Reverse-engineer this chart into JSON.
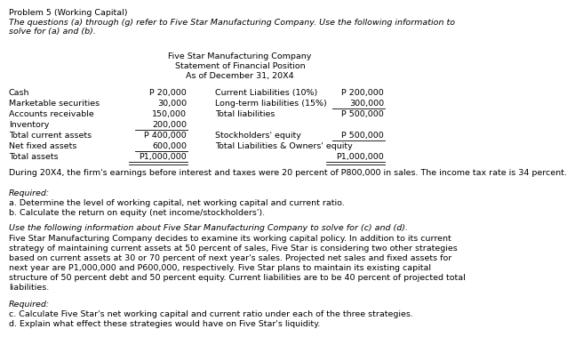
{
  "title_problem": "Problem 5 (Working Capital)",
  "intro_italic": "The questions (a) through (g) refer to Five Star Manufacturing Company. Use the following information to\nsolve for (a) and (b).",
  "company_header": [
    "Five Star Manufacturing Company",
    "Statement of Financial Position",
    "As of December 31, 20X4"
  ],
  "left_items": [
    {
      "label": "Cash",
      "value": "P 20,000",
      "ul": false,
      "dbl": false
    },
    {
      "label": "Marketable securities",
      "value": "30,000",
      "ul": false,
      "dbl": false
    },
    {
      "label": "Accounts receivable",
      "value": "150,000",
      "ul": false,
      "dbl": false
    },
    {
      "label": "Inventory",
      "value": "200,000",
      "ul": true,
      "dbl": false
    },
    {
      "label": "Total current assets",
      "value": "P 400,000",
      "ul": false,
      "dbl": false
    },
    {
      "label": "Net fixed assets",
      "value": "600,000",
      "ul": true,
      "dbl": false
    },
    {
      "label": "Total assets",
      "value": "P1,000,000",
      "ul": false,
      "dbl": true
    }
  ],
  "right_items": [
    {
      "label": "Current Liabilities (10%)",
      "value": "P 200,000",
      "ul": false,
      "dbl": false
    },
    {
      "label": "Long-term liabilities (15%)",
      "value": "300,000",
      "ul": true,
      "dbl": false
    },
    {
      "label": "Total liabilities",
      "value": "P 500,000",
      "ul": false,
      "dbl": false
    },
    {
      "label": "",
      "value": "",
      "ul": false,
      "dbl": false
    },
    {
      "label": "Stockholders' equity",
      "value": "P 500,000",
      "ul": true,
      "dbl": false
    },
    {
      "label": "Total Liabilities & Owners' equity",
      "value": "",
      "ul": false,
      "dbl": false
    },
    {
      "label": "",
      "value": "P1,000,000",
      "ul": false,
      "dbl": true
    }
  ],
  "para1": "During 20X4, the firm's earnings before interest and taxes were 20 percent of P800,000 in sales. The income tax rate is 34 percent.",
  "required1": "Required:",
  "item_a": "a. Determine the level of working capital, net working capital and current ratio.",
  "item_b": "b. Calculate the return on equity (net income/stockholders').",
  "italic2": "Use the following information about Five Star Manufacturing Company to solve for (c) and (d).",
  "para2": "Five Star Manufacturing Company decides to examine its working capital policy. In addition to its current strategy of maintaining current assets at 50 percent of sales, Five Star is considering two other strategies based on current assets at 30 or 70 percent of next year's sales. Projected net sales and fixed assets for next year are P1,000,000 and P600,000, respectively. Five Star plans to maintain its existing capital structure of 50 percent debt and 50 percent equity. Current liabilities are to be 40 percent of projected total liabilities.",
  "required2": "Required:",
  "item_c": "c. Calculate Five Star's net working capital and current ratio under each of the three strategies.",
  "item_d": "d. Explain what effect these strategies would have on Five Star's liquidity.",
  "bg_color": "#ffffff",
  "text_color": "#000000",
  "fs": 6.8
}
